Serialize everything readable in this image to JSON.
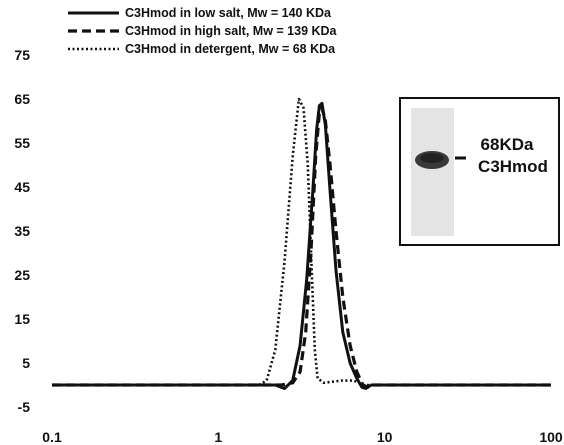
{
  "chart_data": {
    "type": "line",
    "title": "",
    "xlabel": "",
    "ylabel": "",
    "x_scale": "log",
    "xlim": [
      0.1,
      100
    ],
    "ylim": [
      -5,
      75
    ],
    "x_ticks": [
      "0.1",
      "1",
      "10",
      "100"
    ],
    "y_ticks": [
      "75",
      "65",
      "55",
      "45",
      "35",
      "25",
      "15",
      "5",
      "-5"
    ],
    "grid": false,
    "legend_position": "top",
    "series": [
      {
        "name": "C3Hmod in low salt, Mw = 140 KDa",
        "style": "solid",
        "points": [
          [
            0.1,
            0
          ],
          [
            1.5,
            0
          ],
          [
            2.2,
            0
          ],
          [
            2.5,
            -0.8
          ],
          [
            2.8,
            1
          ],
          [
            3.1,
            9
          ],
          [
            3.4,
            24
          ],
          [
            3.7,
            44
          ],
          [
            3.9,
            58
          ],
          [
            4.05,
            63.5
          ],
          [
            4.2,
            64
          ],
          [
            4.4,
            59
          ],
          [
            4.7,
            44
          ],
          [
            5.1,
            26
          ],
          [
            5.6,
            12
          ],
          [
            6.2,
            5
          ],
          [
            6.8,
            1.5
          ],
          [
            7.3,
            -0.5
          ],
          [
            7.7,
            -0.8
          ],
          [
            8.3,
            0
          ],
          [
            100,
            0
          ]
        ]
      },
      {
        "name": "C3Hmod in high salt, Mw = 139 KDa",
        "style": "dashed",
        "points": [
          [
            0.1,
            0
          ],
          [
            2.4,
            0
          ],
          [
            2.8,
            0.5
          ],
          [
            3.1,
            3
          ],
          [
            3.35,
            12
          ],
          [
            3.6,
            30
          ],
          [
            3.85,
            52
          ],
          [
            4.05,
            62
          ],
          [
            4.2,
            63
          ],
          [
            4.4,
            60
          ],
          [
            4.7,
            50
          ],
          [
            5.1,
            35
          ],
          [
            5.6,
            20
          ],
          [
            6.2,
            9
          ],
          [
            6.8,
            3
          ],
          [
            7.4,
            0
          ],
          [
            7.9,
            -0.5
          ],
          [
            8.5,
            0
          ],
          [
            100,
            0
          ]
        ]
      },
      {
        "name": "C3Hmod in detergent, Mw = 68 KDa",
        "style": "dotted",
        "points": [
          [
            0.1,
            0
          ],
          [
            1.75,
            0
          ],
          [
            1.95,
            1
          ],
          [
            2.2,
            8
          ],
          [
            2.5,
            28
          ],
          [
            2.8,
            52
          ],
          [
            3.05,
            65
          ],
          [
            3.25,
            63
          ],
          [
            3.45,
            50
          ],
          [
            3.65,
            25
          ],
          [
            3.8,
            8
          ],
          [
            3.95,
            1.5
          ],
          [
            4.3,
            0.5
          ],
          [
            5.5,
            1
          ],
          [
            6.5,
            1
          ],
          [
            7.5,
            0
          ],
          [
            100,
            0
          ]
        ]
      }
    ],
    "inset": {
      "label_line1": "68KDa",
      "label_line2": "C3Hmod"
    }
  }
}
